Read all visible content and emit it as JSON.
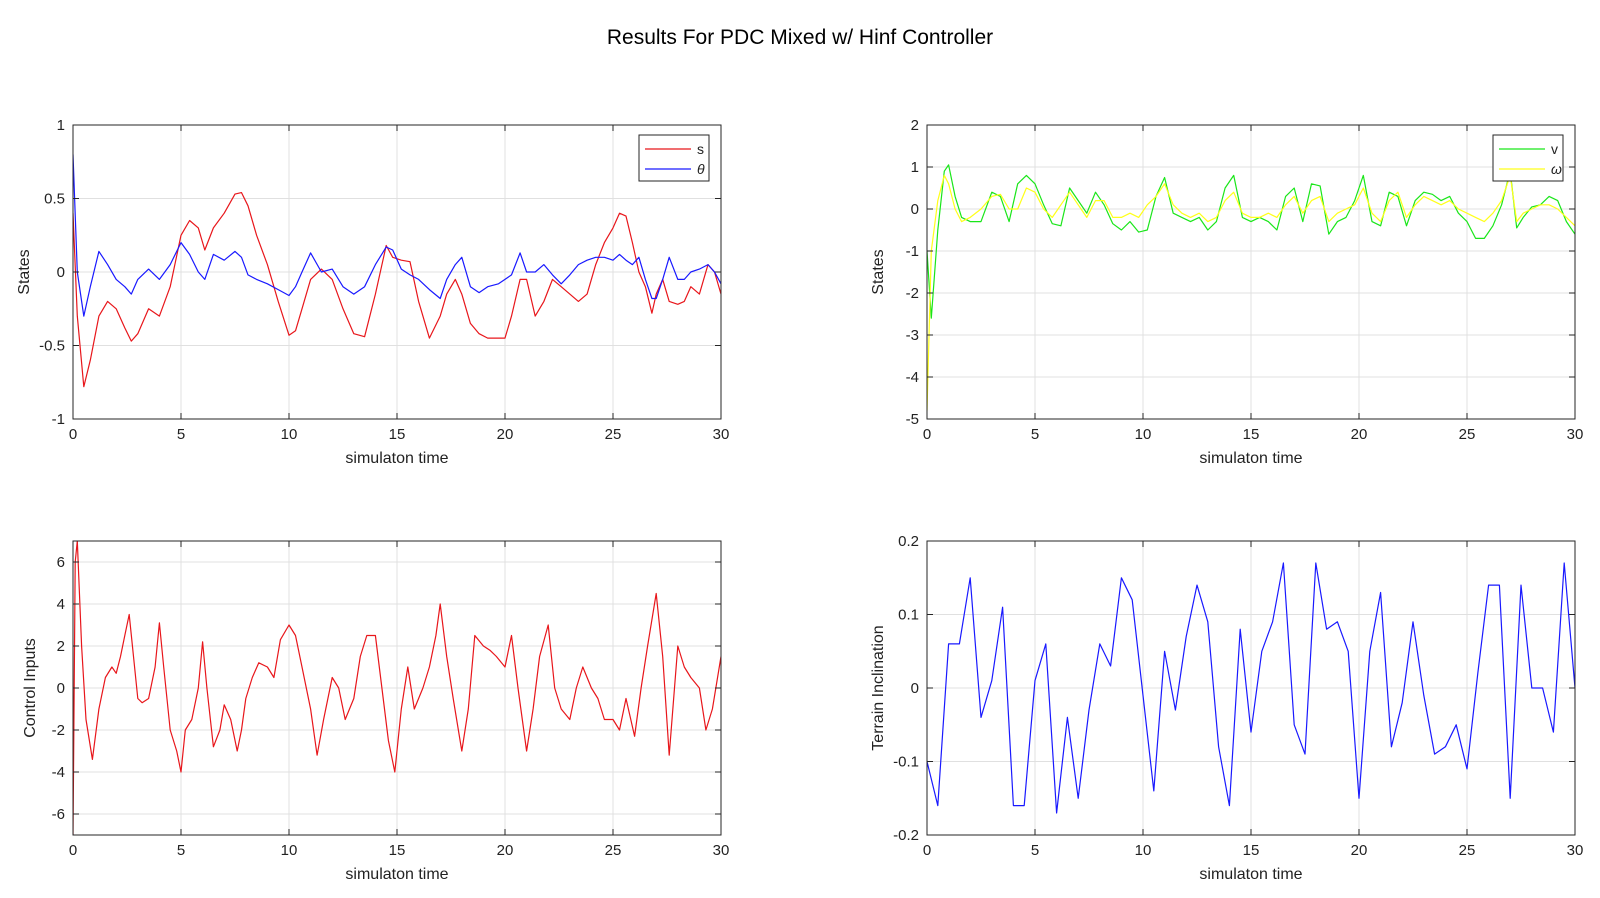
{
  "figure": {
    "title": "Results For PDC Mixed w/ Hinf Controller"
  },
  "colors": {
    "red": "#e8161b",
    "blue": "#1919ff",
    "green": "#19e619",
    "yellow": "#ffff19",
    "grid": "#e0e0e0",
    "axis": "#262626"
  },
  "chart_data": [
    {
      "type": "line",
      "xlabel": "simulaton time",
      "ylabel": "States",
      "xlim": [
        0,
        30
      ],
      "ylim": [
        -1,
        1
      ],
      "xticks": [
        0,
        5,
        10,
        15,
        20,
        25,
        30
      ],
      "yticks": [
        -1,
        -0.5,
        0,
        0.5,
        1
      ],
      "grid": true,
      "legend": "top-right",
      "series": [
        {
          "name": "s",
          "color": "#e8161b",
          "x": [
            0,
            0.2,
            0.5,
            0.8,
            1.2,
            1.6,
            2.0,
            2.4,
            2.7,
            3.0,
            3.5,
            4.0,
            4.5,
            5.0,
            5.4,
            5.8,
            6.1,
            6.5,
            7.0,
            7.5,
            7.8,
            8.1,
            8.5,
            9.0,
            9.5,
            10.0,
            10.3,
            10.6,
            11.0,
            11.5,
            12.0,
            12.5,
            13.0,
            13.5,
            14.0,
            14.5,
            14.8,
            15.2,
            15.6,
            16.0,
            16.5,
            17.0,
            17.3,
            17.7,
            18.0,
            18.4,
            18.8,
            19.2,
            19.7,
            20.0,
            20.3,
            20.7,
            21.0,
            21.4,
            21.8,
            22.2,
            22.6,
            23.0,
            23.4,
            23.8,
            24.2,
            24.6,
            25.0,
            25.3,
            25.6,
            25.9,
            26.2,
            26.5,
            26.8,
            27.0,
            27.3,
            27.6,
            28.0,
            28.3,
            28.6,
            29.0,
            29.4,
            29.7,
            30.0
          ],
          "y": [
            0.4,
            -0.3,
            -0.78,
            -0.6,
            -0.3,
            -0.2,
            -0.25,
            -0.38,
            -0.47,
            -0.42,
            -0.25,
            -0.3,
            -0.1,
            0.25,
            0.35,
            0.3,
            0.15,
            0.3,
            0.4,
            0.53,
            0.54,
            0.45,
            0.25,
            0.05,
            -0.2,
            -0.43,
            -0.4,
            -0.25,
            -0.05,
            0.02,
            -0.05,
            -0.25,
            -0.42,
            -0.44,
            -0.15,
            0.18,
            0.1,
            0.08,
            0.07,
            -0.2,
            -0.45,
            -0.3,
            -0.15,
            -0.05,
            -0.15,
            -0.35,
            -0.42,
            -0.45,
            -0.45,
            -0.45,
            -0.3,
            -0.05,
            -0.05,
            -0.3,
            -0.2,
            -0.05,
            -0.1,
            -0.15,
            -0.2,
            -0.15,
            0.05,
            0.2,
            0.3,
            0.4,
            0.38,
            0.2,
            0.0,
            -0.1,
            -0.28,
            -0.15,
            -0.05,
            -0.2,
            -0.22,
            -0.2,
            -0.1,
            -0.15,
            0.05,
            0.0,
            -0.15
          ]
        },
        {
          "name": "θ",
          "color": "#1919ff",
          "x": [
            0,
            0.2,
            0.5,
            0.8,
            1.2,
            1.6,
            2.0,
            2.4,
            2.7,
            3.0,
            3.5,
            4.0,
            4.5,
            5.0,
            5.4,
            5.8,
            6.1,
            6.5,
            7.0,
            7.5,
            7.8,
            8.1,
            8.5,
            9.0,
            9.5,
            10.0,
            10.3,
            10.6,
            11.0,
            11.5,
            12.0,
            12.5,
            13.0,
            13.5,
            14.0,
            14.5,
            14.8,
            15.2,
            15.6,
            16.0,
            16.5,
            17.0,
            17.3,
            17.7,
            18.0,
            18.4,
            18.8,
            19.2,
            19.7,
            20.0,
            20.3,
            20.7,
            21.0,
            21.4,
            21.8,
            22.2,
            22.6,
            23.0,
            23.4,
            23.8,
            24.2,
            24.6,
            25.0,
            25.3,
            25.6,
            25.9,
            26.2,
            26.5,
            26.8,
            27.0,
            27.3,
            27.6,
            28.0,
            28.3,
            28.6,
            29.0,
            29.4,
            29.7,
            30.0
          ],
          "y": [
            0.8,
            0.0,
            -0.3,
            -0.1,
            0.14,
            0.05,
            -0.05,
            -0.1,
            -0.15,
            -0.05,
            0.02,
            -0.05,
            0.05,
            0.2,
            0.12,
            0.0,
            -0.05,
            0.12,
            0.08,
            0.14,
            0.1,
            -0.02,
            -0.05,
            -0.08,
            -0.12,
            -0.16,
            -0.1,
            0.0,
            0.13,
            0.0,
            0.02,
            -0.1,
            -0.15,
            -0.1,
            0.05,
            0.17,
            0.15,
            0.02,
            -0.02,
            -0.05,
            -0.12,
            -0.18,
            -0.05,
            0.05,
            0.1,
            -0.1,
            -0.14,
            -0.1,
            -0.08,
            -0.05,
            -0.02,
            0.13,
            0.0,
            0.0,
            0.05,
            -0.02,
            -0.08,
            -0.02,
            0.05,
            0.08,
            0.1,
            0.1,
            0.08,
            0.12,
            0.08,
            0.05,
            0.1,
            -0.05,
            -0.18,
            -0.18,
            -0.05,
            0.1,
            -0.05,
            -0.05,
            0.0,
            0.02,
            0.05,
            0.0,
            -0.08
          ]
        }
      ]
    },
    {
      "type": "line",
      "xlabel": "simulaton time",
      "ylabel": "States",
      "xlim": [
        0,
        30
      ],
      "ylim": [
        -5,
        2
      ],
      "xticks": [
        0,
        5,
        10,
        15,
        20,
        25,
        30
      ],
      "yticks": [
        -5,
        -4,
        -3,
        -2,
        -1,
        0,
        1,
        2
      ],
      "grid": true,
      "legend": "top-right",
      "series": [
        {
          "name": "v",
          "color": "#19e619",
          "x": [
            0,
            0.2,
            0.5,
            0.8,
            1.0,
            1.3,
            1.6,
            2.0,
            2.5,
            3.0,
            3.4,
            3.8,
            4.2,
            4.6,
            5.0,
            5.4,
            5.8,
            6.2,
            6.6,
            7.0,
            7.4,
            7.8,
            8.2,
            8.6,
            9.0,
            9.4,
            9.8,
            10.2,
            10.6,
            11.0,
            11.4,
            11.8,
            12.2,
            12.6,
            13.0,
            13.4,
            13.8,
            14.2,
            14.6,
            15.0,
            15.4,
            15.8,
            16.2,
            16.6,
            17.0,
            17.4,
            17.8,
            18.2,
            18.6,
            19.0,
            19.4,
            19.8,
            20.2,
            20.6,
            21.0,
            21.4,
            21.8,
            22.2,
            22.6,
            23.0,
            23.4,
            23.8,
            24.2,
            24.6,
            25.0,
            25.4,
            25.8,
            26.2,
            26.6,
            27.0,
            27.3,
            27.6,
            28.0,
            28.4,
            28.8,
            29.2,
            29.6,
            30.0
          ],
          "y": [
            -1.0,
            -2.6,
            -0.5,
            0.9,
            1.05,
            0.3,
            -0.2,
            -0.3,
            -0.3,
            0.4,
            0.3,
            -0.3,
            0.6,
            0.8,
            0.6,
            0.1,
            -0.35,
            -0.4,
            0.5,
            0.2,
            -0.1,
            0.4,
            0.1,
            -0.35,
            -0.5,
            -0.3,
            -0.55,
            -0.5,
            0.3,
            0.75,
            -0.1,
            -0.2,
            -0.3,
            -0.2,
            -0.5,
            -0.3,
            0.5,
            0.8,
            -0.2,
            -0.3,
            -0.2,
            -0.3,
            -0.5,
            0.3,
            0.5,
            -0.3,
            0.6,
            0.55,
            -0.6,
            -0.3,
            -0.2,
            0.2,
            0.8,
            -0.3,
            -0.4,
            0.4,
            0.3,
            -0.4,
            0.2,
            0.4,
            0.35,
            0.2,
            0.3,
            -0.1,
            -0.3,
            -0.7,
            -0.7,
            -0.4,
            0.1,
            0.9,
            -0.45,
            -0.2,
            0.05,
            0.1,
            0.3,
            0.2,
            -0.3,
            -0.6
          ]
        },
        {
          "name": "ω",
          "color": "#ffff19",
          "x": [
            0,
            0.2,
            0.5,
            0.8,
            1.0,
            1.3,
            1.6,
            2.0,
            2.5,
            3.0,
            3.4,
            3.8,
            4.2,
            4.6,
            5.0,
            5.4,
            5.8,
            6.2,
            6.6,
            7.0,
            7.4,
            7.8,
            8.2,
            8.6,
            9.0,
            9.4,
            9.8,
            10.2,
            10.6,
            11.0,
            11.4,
            11.8,
            12.2,
            12.6,
            13.0,
            13.4,
            13.8,
            14.2,
            14.6,
            15.0,
            15.4,
            15.8,
            16.2,
            16.6,
            17.0,
            17.4,
            17.8,
            18.2,
            18.6,
            19.0,
            19.4,
            19.8,
            20.2,
            20.6,
            21.0,
            21.4,
            21.8,
            22.2,
            22.6,
            23.0,
            23.4,
            23.8,
            24.2,
            24.6,
            25.0,
            25.4,
            25.8,
            26.2,
            26.6,
            27.0,
            27.3,
            27.6,
            28.0,
            28.4,
            28.8,
            29.2,
            29.6,
            30.0
          ],
          "y": [
            -4.8,
            -1.0,
            0.2,
            0.8,
            0.6,
            0.0,
            -0.3,
            -0.2,
            0.0,
            0.3,
            0.35,
            0.0,
            0.0,
            0.5,
            0.4,
            0.0,
            -0.2,
            0.1,
            0.4,
            0.1,
            -0.2,
            0.2,
            0.2,
            -0.2,
            -0.2,
            -0.1,
            -0.2,
            0.1,
            0.3,
            0.6,
            0.1,
            -0.1,
            -0.2,
            -0.1,
            -0.3,
            -0.2,
            0.2,
            0.4,
            -0.1,
            -0.2,
            -0.2,
            -0.1,
            -0.2,
            0.1,
            0.3,
            -0.1,
            0.2,
            0.3,
            -0.3,
            -0.1,
            0.0,
            0.1,
            0.5,
            -0.1,
            -0.3,
            0.2,
            0.4,
            -0.2,
            0.1,
            0.3,
            0.2,
            0.1,
            0.2,
            0.0,
            -0.1,
            -0.2,
            -0.3,
            -0.1,
            0.2,
            0.8,
            -0.3,
            -0.1,
            0.0,
            0.1,
            0.1,
            0.0,
            -0.2,
            -0.4
          ]
        }
      ]
    },
    {
      "type": "line",
      "xlabel": "simulaton time",
      "ylabel": "Control Inputs",
      "xlim": [
        0,
        30
      ],
      "ylim": [
        -7,
        7
      ],
      "xticks": [
        0,
        5,
        10,
        15,
        20,
        25,
        30
      ],
      "yticks": [
        -6,
        -4,
        -2,
        0,
        2,
        4,
        6
      ],
      "grid": true,
      "series": [
        {
          "name": "",
          "color": "#e8161b",
          "x": [
            0,
            0.1,
            0.2,
            0.4,
            0.6,
            0.9,
            1.2,
            1.5,
            1.8,
            2.0,
            2.2,
            2.4,
            2.6,
            2.8,
            3.0,
            3.2,
            3.5,
            3.8,
            4.0,
            4.2,
            4.5,
            4.8,
            5.0,
            5.2,
            5.5,
            5.8,
            6.0,
            6.2,
            6.5,
            6.8,
            7.0,
            7.3,
            7.6,
            7.8,
            8.0,
            8.3,
            8.6,
            9.0,
            9.3,
            9.6,
            10.0,
            10.3,
            10.6,
            11.0,
            11.3,
            11.6,
            12.0,
            12.3,
            12.6,
            13.0,
            13.3,
            13.6,
            14.0,
            14.3,
            14.6,
            14.9,
            15.2,
            15.5,
            15.8,
            16.2,
            16.5,
            16.8,
            17.0,
            17.3,
            17.6,
            18.0,
            18.3,
            18.6,
            19.0,
            19.3,
            19.6,
            20.0,
            20.3,
            20.6,
            21.0,
            21.3,
            21.6,
            22.0,
            22.3,
            22.6,
            23.0,
            23.3,
            23.6,
            24.0,
            24.3,
            24.6,
            25.0,
            25.3,
            25.6,
            26.0,
            26.3,
            26.6,
            27.0,
            27.3,
            27.6,
            28.0,
            28.3,
            28.6,
            29.0,
            29.3,
            29.6,
            30.0
          ],
          "y": [
            -7,
            6,
            7,
            2.0,
            -1.5,
            -3.4,
            -1.0,
            0.5,
            1.0,
            0.7,
            1.5,
            2.5,
            3.5,
            1.5,
            -0.5,
            -0.7,
            -0.5,
            1.0,
            3.1,
            1.0,
            -2.0,
            -3.0,
            -4.0,
            -2.0,
            -1.5,
            0.0,
            2.2,
            0.0,
            -2.8,
            -2.0,
            -0.8,
            -1.5,
            -3.0,
            -2.0,
            -0.5,
            0.5,
            1.2,
            1.0,
            0.5,
            2.3,
            3.0,
            2.5,
            1.0,
            -1.0,
            -3.2,
            -1.5,
            0.5,
            0.0,
            -1.5,
            -0.5,
            1.5,
            2.5,
            2.5,
            0.0,
            -2.5,
            -4.0,
            -1.0,
            1.0,
            -1.0,
            0.0,
            1.0,
            2.5,
            4.0,
            1.5,
            -0.5,
            -3.0,
            -1.0,
            2.5,
            2.0,
            1.8,
            1.5,
            1.0,
            2.5,
            0.0,
            -3.0,
            -1.0,
            1.5,
            3.0,
            0.0,
            -1.0,
            -1.5,
            0.0,
            1.0,
            0.0,
            -0.5,
            -1.5,
            -1.5,
            -2.0,
            -0.5,
            -2.3,
            0.0,
            2.0,
            4.5,
            1.5,
            -3.2,
            2.0,
            1.0,
            0.5,
            0.0,
            -2.0,
            -1.0,
            1.5
          ]
        }
      ]
    },
    {
      "type": "line",
      "xlabel": "simulaton time",
      "ylabel": "Terrain Inclination",
      "xlim": [
        0,
        30
      ],
      "ylim": [
        -0.2,
        0.2
      ],
      "xticks": [
        0,
        5,
        10,
        15,
        20,
        25,
        30
      ],
      "yticks": [
        -0.2,
        -0.1,
        0,
        0.1,
        0.2
      ],
      "grid": true,
      "series": [
        {
          "name": "",
          "color": "#1919ff",
          "x": [
            0,
            0.5,
            1,
            1.5,
            2,
            2.5,
            3,
            3.5,
            4,
            4.5,
            5,
            5.5,
            6,
            6.5,
            7,
            7.5,
            8,
            8.5,
            9,
            9.5,
            10,
            10.5,
            11,
            11.5,
            12,
            12.5,
            13,
            13.5,
            14,
            14.5,
            15,
            15.5,
            16,
            16.5,
            17,
            17.5,
            18,
            18.5,
            19,
            19.5,
            20,
            20.5,
            21,
            21.5,
            22,
            22.5,
            23,
            23.5,
            24,
            24.5,
            25,
            25.5,
            26,
            26.5,
            27,
            27.5,
            28,
            28.5,
            29,
            29.5,
            30
          ],
          "y": [
            -0.1,
            -0.16,
            0.06,
            0.06,
            0.15,
            -0.04,
            0.01,
            0.11,
            -0.16,
            -0.16,
            0.01,
            0.06,
            -0.17,
            -0.04,
            -0.15,
            -0.03,
            0.06,
            0.03,
            0.15,
            0.12,
            -0.01,
            -0.14,
            0.05,
            -0.03,
            0.07,
            0.14,
            0.09,
            -0.08,
            -0.16,
            0.08,
            -0.06,
            0.05,
            0.09,
            0.17,
            -0.05,
            -0.09,
            0.17,
            0.08,
            0.09,
            0.05,
            -0.15,
            0.05,
            0.13,
            -0.08,
            -0.02,
            0.09,
            -0.01,
            -0.09,
            -0.08,
            -0.05,
            -0.11,
            0.02,
            0.14,
            0.14,
            -0.15,
            0.14,
            0.0,
            0.0,
            -0.06,
            0.17,
            0.0
          ]
        }
      ]
    }
  ]
}
